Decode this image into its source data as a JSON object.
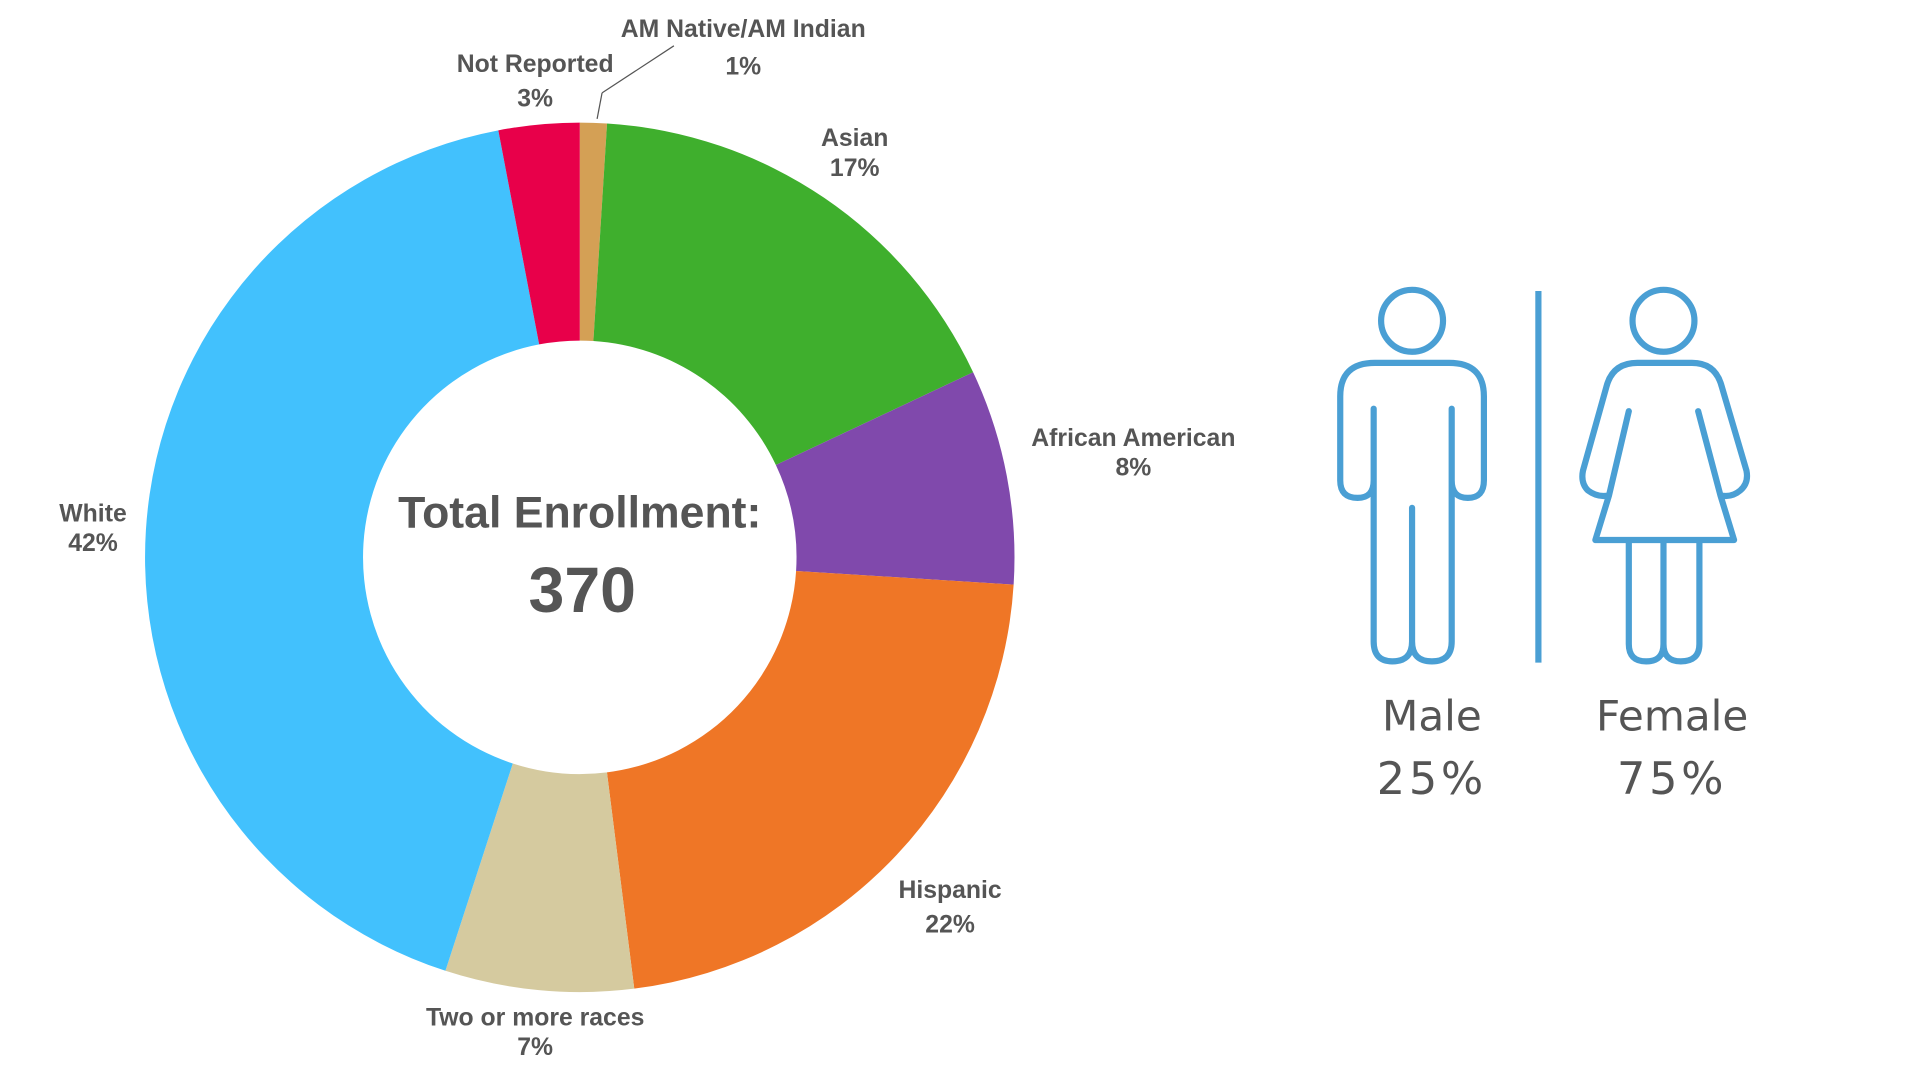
{
  "chart_data": {
    "type": "pie",
    "variant": "donut",
    "center_title": "Total Enrollment:",
    "center_value": "370",
    "slices": [
      {
        "label": "AM Native/AM Indian",
        "value": 1,
        "pct_label": "1%",
        "color": "#D4A055"
      },
      {
        "label": "Asian",
        "value": 17,
        "pct_label": "17%",
        "color": "#3FAF2D"
      },
      {
        "label": "African American",
        "value": 8,
        "pct_label": "8%",
        "color": "#8049AC"
      },
      {
        "label": "Hispanic",
        "value": 22,
        "pct_label": "22%",
        "color": "#EF7626"
      },
      {
        "label": "Two or more races",
        "value": 7,
        "pct_label": "7%",
        "color": "#D5CA9F"
      },
      {
        "label": "White",
        "value": 42,
        "pct_label": "42%",
        "color": "#42C1FD"
      },
      {
        "label": "Not Reported",
        "value": 3,
        "pct_label": "3%",
        "color": "#E8004A"
      }
    ],
    "start": "top",
    "direction": "clockwise"
  },
  "gender": {
    "icon_color": "#4A9FD4",
    "male": {
      "label": "Male",
      "pct": "25%",
      "icon": "male-person-icon"
    },
    "female": {
      "label": "Female",
      "pct": "75%",
      "icon": "female-person-icon"
    }
  }
}
